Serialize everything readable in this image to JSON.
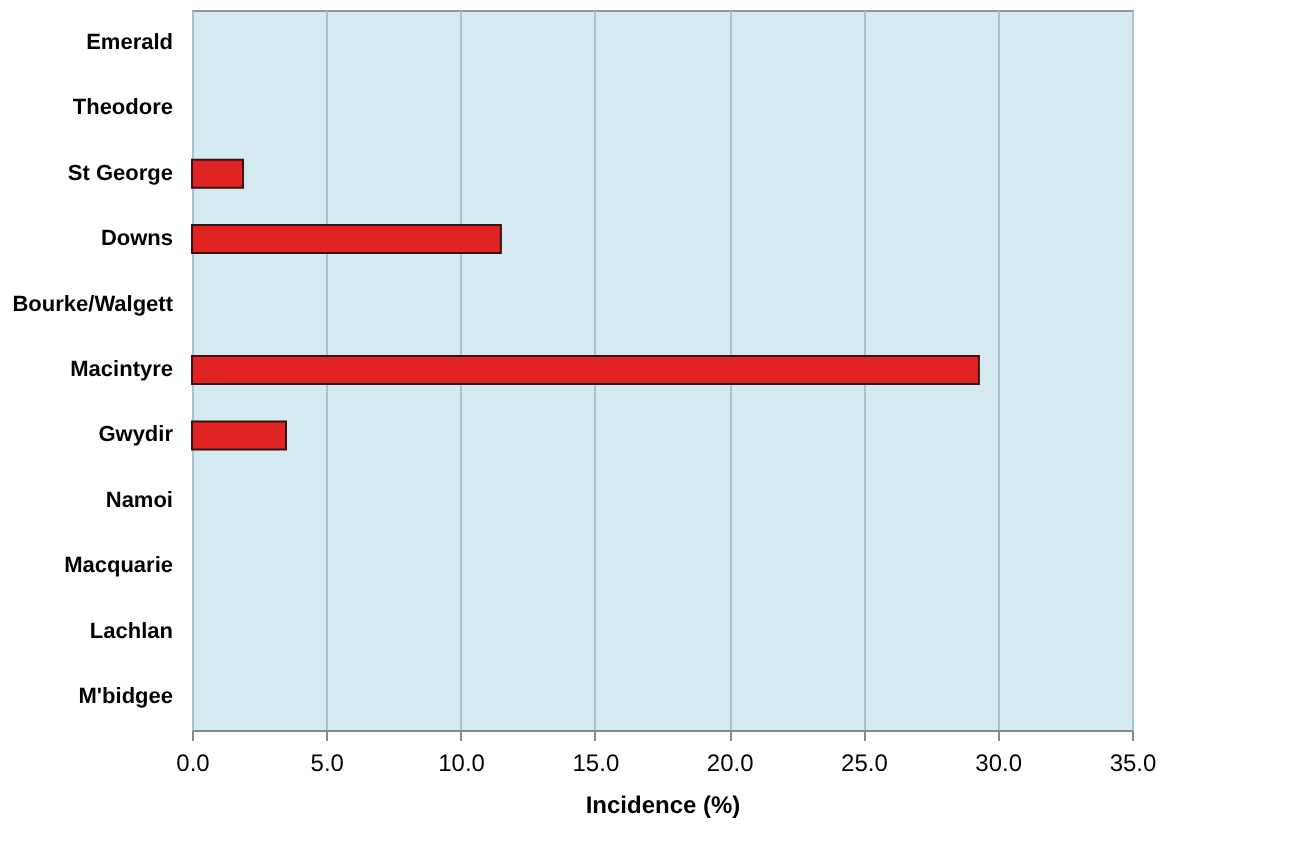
{
  "chart_data": {
    "type": "bar",
    "orientation": "horizontal",
    "xlabel": "Incidence (%)",
    "categories": [
      "Emerald",
      "Theodore",
      "St George",
      "Downs",
      "Bourke/Walgett",
      "Macintyre",
      "Gwydir",
      "Namoi",
      "Macquarie",
      "Lachlan",
      "M'bidgee"
    ],
    "values": [
      0,
      0,
      1.9,
      11.5,
      0,
      29.3,
      3.5,
      0,
      0,
      0,
      0
    ],
    "color": "#e02424",
    "xlim": [
      0,
      35
    ],
    "xticks": [
      {
        "value": 0,
        "label": "0.0"
      },
      {
        "value": 5,
        "label": "5.0"
      },
      {
        "value": 10,
        "label": "10.0"
      },
      {
        "value": 15,
        "label": "15.0"
      },
      {
        "value": 20,
        "label": "20.0"
      },
      {
        "value": 25,
        "label": "25.0"
      },
      {
        "value": 30,
        "label": "30.0"
      },
      {
        "value": 35,
        "label": "35.0"
      }
    ],
    "grid": "x"
  }
}
